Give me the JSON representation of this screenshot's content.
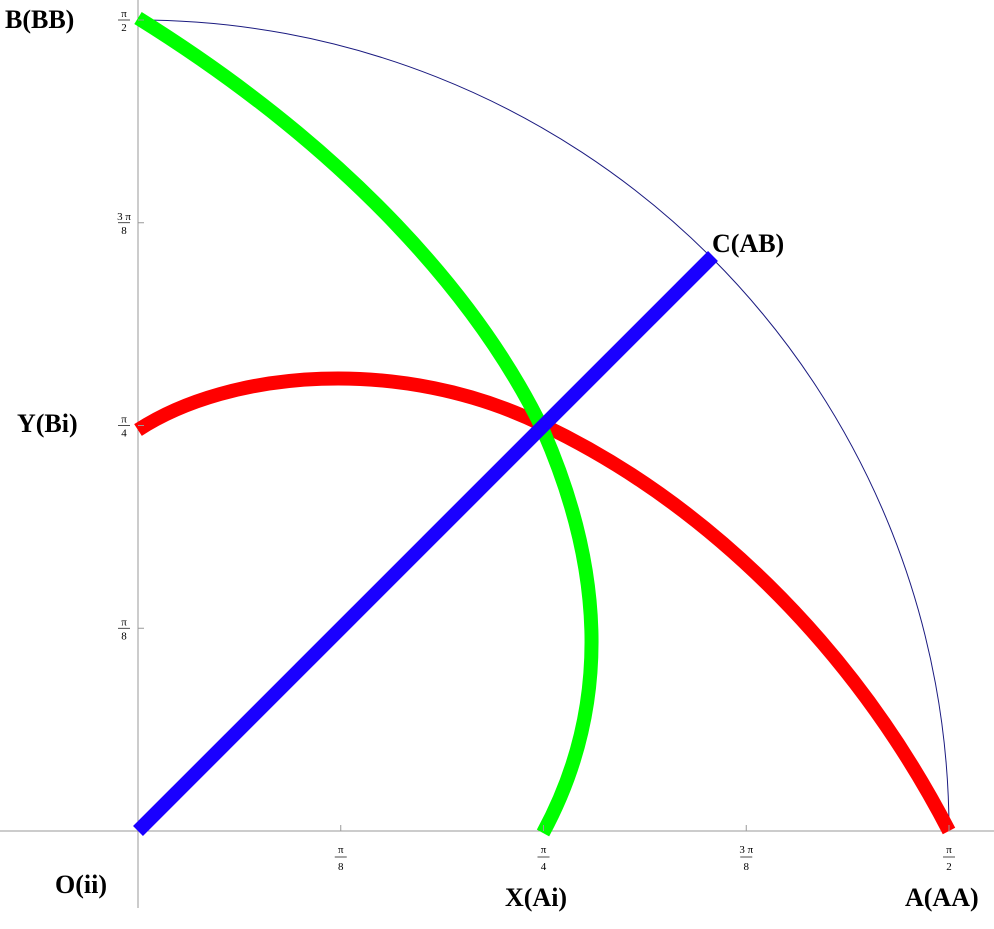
{
  "labels": {
    "b": "B(BB)",
    "c": "C(AB)",
    "y": "Y(Bi)",
    "o": "O(ii)",
    "x": "X(Ai)",
    "a": "A(AA)"
  },
  "x_ticks": [
    {
      "num": "π",
      "den": "8"
    },
    {
      "num": "π",
      "den": "4"
    },
    {
      "num": "3 π",
      "den": "8"
    },
    {
      "num": "π",
      "den": "2"
    }
  ],
  "y_ticks": [
    {
      "num": "π",
      "den": "8"
    },
    {
      "num": "π",
      "den": "4"
    },
    {
      "num": "3 π",
      "den": "8"
    },
    {
      "num": "π",
      "den": "2"
    }
  ]
}
